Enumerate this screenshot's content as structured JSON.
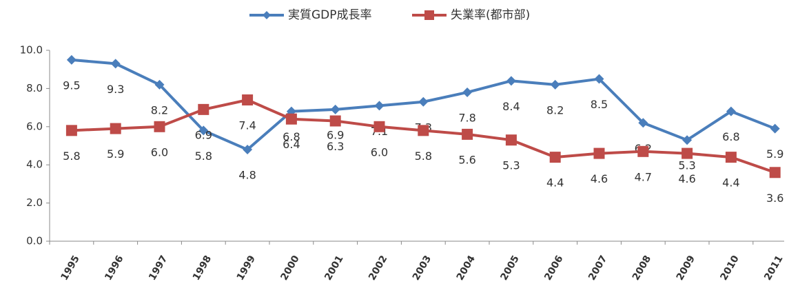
{
  "chart_data": {
    "type": "line",
    "categories": [
      "1995",
      "1996",
      "1997",
      "1998",
      "1999",
      "2000",
      "2001",
      "2002",
      "2003",
      "2004",
      "2005",
      "2006",
      "2007",
      "2008",
      "2009",
      "2010",
      "2011"
    ],
    "series": [
      {
        "name": "実質GDP成長率",
        "color": "#4a7ebb",
        "marker": "diamond",
        "values": [
          9.5,
          9.3,
          8.2,
          5.8,
          4.8,
          6.8,
          6.9,
          7.1,
          7.3,
          7.8,
          8.4,
          8.2,
          8.5,
          6.2,
          5.3,
          6.8,
          5.9
        ],
        "value_labels": [
          "9.5",
          "9.3",
          "8.2",
          "5.8",
          "4.8",
          "6.8",
          "6.9",
          "7.1",
          "7.3",
          "7.8",
          "8.4",
          "8.2",
          "8.5",
          "6.2",
          "5.3",
          "6.8",
          "5.9"
        ]
      },
      {
        "name": "失業率(都市部)",
        "color": "#be4b48",
        "marker": "square",
        "values": [
          5.8,
          5.9,
          6.0,
          6.9,
          7.4,
          6.4,
          6.3,
          6.0,
          5.8,
          5.6,
          5.3,
          4.4,
          4.6,
          4.7,
          4.6,
          4.4,
          3.6
        ],
        "value_labels": [
          "5.8",
          "5.9",
          "6.0",
          "6.9",
          "7.4",
          "6.4",
          "6.3",
          "6.0",
          "5.8",
          "5.6",
          "5.3",
          "4.4",
          "4.6",
          "4.7",
          "4.6",
          "4.4",
          "3.6"
        ]
      }
    ],
    "ylim": [
      0,
      10
    ],
    "yticks": [
      {
        "value": 0,
        "label": "0.0"
      },
      {
        "value": 2,
        "label": "2.0"
      },
      {
        "value": 4,
        "label": "4.0"
      },
      {
        "value": 6,
        "label": "6.0"
      },
      {
        "value": 8,
        "label": "8.0"
      },
      {
        "value": 10,
        "label": "10.0"
      }
    ],
    "grid": false,
    "legend": "top"
  }
}
